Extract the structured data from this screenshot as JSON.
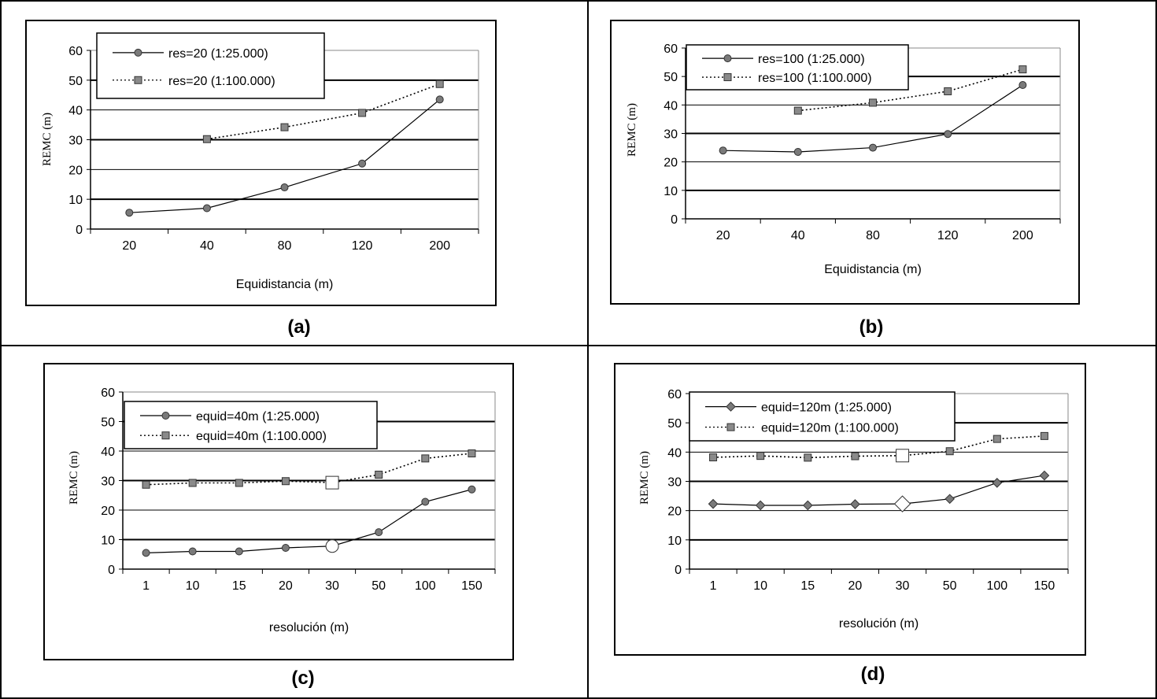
{
  "panels": [
    {
      "caption": "(a)",
      "chart_data": {
        "type": "line",
        "categories": [
          "20",
          "40",
          "80",
          "120",
          "200"
        ],
        "ylabel": "REMC (m)",
        "xlabel": "Equidistancia (m)",
        "ylim": [
          0,
          60
        ],
        "yticks": [
          0,
          10,
          20,
          30,
          40,
          50,
          60
        ],
        "grid": true,
        "legend": "top-left",
        "series": [
          {
            "name": "res=20 (1:25.000)",
            "marker": "circle",
            "style": "solid",
            "values": [
              5.5,
              7,
              14,
              22,
              43.5
            ]
          },
          {
            "name": "res=20 (1:100.000)",
            "marker": "square",
            "style": "dotted",
            "values": [
              null,
              30.2,
              34.2,
              39,
              48.7
            ]
          }
        ],
        "highlight_index": null
      }
    },
    {
      "caption": "(b)",
      "chart_data": {
        "type": "line",
        "categories": [
          "20",
          "40",
          "80",
          "120",
          "200"
        ],
        "ylabel": "REMC (m)",
        "xlabel": "Equidistancia (m)",
        "ylim": [
          0,
          60
        ],
        "yticks": [
          0,
          10,
          20,
          30,
          40,
          50,
          60
        ],
        "grid": true,
        "legend": "top-left",
        "series": [
          {
            "name": "res=100 (1:25.000)",
            "marker": "circle",
            "style": "solid",
            "values": [
              24,
              23.5,
              25,
              29.8,
              47
            ]
          },
          {
            "name": "res=100 (1:100.000)",
            "marker": "square",
            "style": "dotted",
            "values": [
              null,
              38,
              40.8,
              44.8,
              52.5
            ]
          }
        ],
        "highlight_index": null
      }
    },
    {
      "caption": "(c)",
      "chart_data": {
        "type": "line",
        "categories": [
          "1",
          "10",
          "15",
          "20",
          "30",
          "50",
          "100",
          "150"
        ],
        "ylabel": "REMC (m)",
        "xlabel": "resolución (m)",
        "ylim": [
          0,
          60
        ],
        "yticks": [
          0,
          10,
          20,
          30,
          40,
          50,
          60
        ],
        "grid": true,
        "legend": "top-left",
        "series": [
          {
            "name": "equid=40m (1:25.000)",
            "marker": "circle",
            "style": "solid",
            "values": [
              5.5,
              6,
              6,
              7.2,
              7.8,
              12.5,
              22.8,
              27
            ]
          },
          {
            "name": "equid=40m (1:100.000)",
            "marker": "square",
            "style": "dotted",
            "values": [
              28.6,
              29.2,
              29.2,
              29.8,
              29.3,
              32,
              37.5,
              39.2
            ]
          }
        ],
        "highlight_index": 4
      }
    },
    {
      "caption": "(d)",
      "chart_data": {
        "type": "line",
        "categories": [
          "1",
          "10",
          "15",
          "20",
          "30",
          "50",
          "100",
          "150"
        ],
        "ylabel": "REMC (m)",
        "xlabel": "resolución (m)",
        "ylim": [
          0,
          60
        ],
        "yticks": [
          0,
          10,
          20,
          30,
          40,
          50,
          60
        ],
        "grid": true,
        "legend": "top-left",
        "series": [
          {
            "name": "equid=120m (1:25.000)",
            "marker": "diamond",
            "style": "solid",
            "values": [
              22.3,
              21.8,
              21.8,
              22.2,
              22.3,
              24,
              29.5,
              32
            ]
          },
          {
            "name": "equid=120m (1:100.000)",
            "marker": "square",
            "style": "dotted",
            "values": [
              38.2,
              38.7,
              38.1,
              38.6,
              38.8,
              40.3,
              44.5,
              45.5
            ]
          }
        ],
        "highlight_index": 4
      }
    }
  ]
}
